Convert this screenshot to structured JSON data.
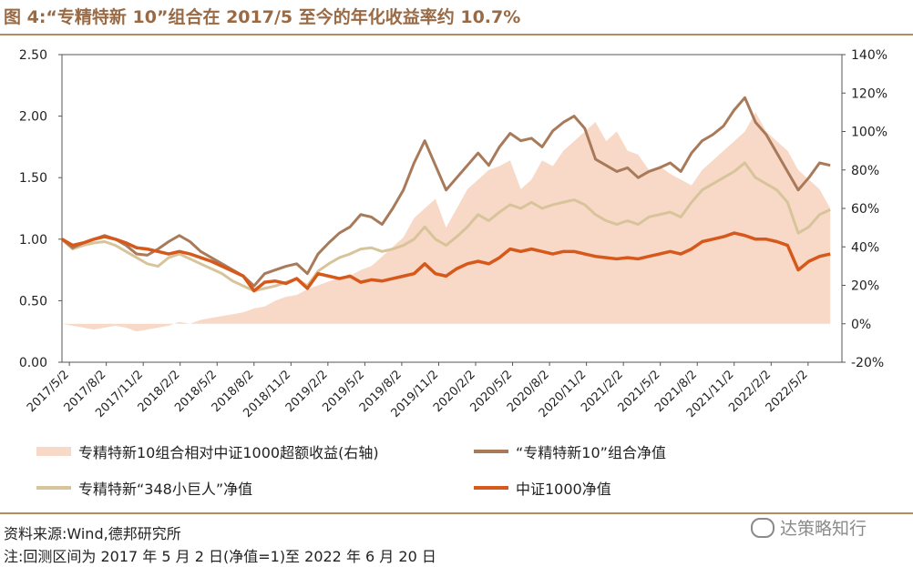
{
  "title": "图 4:“专精特新 10”组合在 2017/5 至今的年化收益率约 10.7%",
  "source": "资料来源:Wind,德邦研究所",
  "note": "注:回测区间为 2017 年 5 月 2 日(净值=1)至 2022 年 6 月 20 日",
  "watermark": "达策略知行",
  "colors": {
    "excess": "#f8d9c7",
    "top10": "#a87a5a",
    "giant348": "#d8c49a",
    "csi1000": "#d6581a",
    "rule": "#b88a60"
  },
  "chart_data": {
    "type": "line",
    "x_labels": [
      "2017/5/2",
      "2017/8/2",
      "2017/11/2",
      "2018/2/2",
      "2018/5/2",
      "2018/8/2",
      "2018/11/2",
      "2019/2/2",
      "2019/5/2",
      "2019/8/2",
      "2019/11/2",
      "2020/2/2",
      "2020/5/2",
      "2020/8/2",
      "2020/11/2",
      "2021/2/2",
      "2021/5/2",
      "2021/8/2",
      "2021/11/2",
      "2022/2/2",
      "2022/5/2"
    ],
    "y_left": {
      "ticks": [
        "0.00",
        "0.50",
        "1.00",
        "1.50",
        "2.00",
        "2.50"
      ],
      "range": [
        0,
        2.5
      ]
    },
    "y_right": {
      "ticks": [
        "-20%",
        "0%",
        "20%",
        "40%",
        "60%",
        "80%",
        "100%",
        "120%",
        "140%"
      ],
      "range": [
        -20,
        140
      ]
    },
    "series": [
      {
        "name": "专精特新10组合相对中证1000超额收益(右轴)",
        "type": "area",
        "axis": "right",
        "values": [
          0,
          -1,
          -2,
          -3,
          -2,
          -1,
          -2,
          -4,
          -3,
          -2,
          -1,
          1,
          0,
          2,
          3,
          4,
          5,
          6,
          8,
          9,
          12,
          14,
          15,
          18,
          20,
          22,
          24,
          25,
          28,
          30,
          35,
          40,
          45,
          55,
          60,
          65,
          50,
          60,
          70,
          75,
          80,
          82,
          85,
          70,
          75,
          85,
          82,
          90,
          95,
          100,
          105,
          95,
          100,
          90,
          88,
          80,
          82,
          78,
          75,
          72,
          80,
          85,
          90,
          95,
          100,
          110,
          100,
          95,
          90,
          80,
          75,
          70,
          60
        ]
      },
      {
        "name": "“专精特新10”组合净值",
        "type": "line",
        "axis": "left",
        "values": [
          1.0,
          0.93,
          0.97,
          1.0,
          1.03,
          1.0,
          0.95,
          0.88,
          0.87,
          0.92,
          0.98,
          1.03,
          0.98,
          0.9,
          0.85,
          0.8,
          0.75,
          0.7,
          0.62,
          0.72,
          0.75,
          0.78,
          0.8,
          0.72,
          0.88,
          0.97,
          1.05,
          1.1,
          1.2,
          1.18,
          1.12,
          1.25,
          1.4,
          1.62,
          1.8,
          1.6,
          1.4,
          1.5,
          1.6,
          1.7,
          1.6,
          1.75,
          1.86,
          1.8,
          1.82,
          1.75,
          1.88,
          1.95,
          2.0,
          1.9,
          1.65,
          1.6,
          1.55,
          1.58,
          1.5,
          1.55,
          1.58,
          1.62,
          1.55,
          1.7,
          1.8,
          1.85,
          1.92,
          2.05,
          2.15,
          1.95,
          1.85,
          1.7,
          1.55,
          1.4,
          1.5,
          1.62,
          1.6
        ]
      },
      {
        "name": "专精特新“348小巨人”净值",
        "type": "line",
        "axis": "left",
        "values": [
          1.0,
          0.92,
          0.95,
          0.97,
          0.98,
          0.95,
          0.9,
          0.85,
          0.8,
          0.78,
          0.85,
          0.88,
          0.84,
          0.8,
          0.76,
          0.72,
          0.66,
          0.62,
          0.58,
          0.6,
          0.62,
          0.65,
          0.68,
          0.62,
          0.74,
          0.8,
          0.85,
          0.88,
          0.92,
          0.93,
          0.9,
          0.92,
          0.95,
          1.0,
          1.1,
          1.0,
          0.95,
          1.02,
          1.1,
          1.2,
          1.15,
          1.22,
          1.28,
          1.25,
          1.3,
          1.25,
          1.28,
          1.3,
          1.32,
          1.28,
          1.2,
          1.15,
          1.12,
          1.15,
          1.12,
          1.18,
          1.2,
          1.22,
          1.18,
          1.3,
          1.4,
          1.45,
          1.5,
          1.55,
          1.62,
          1.5,
          1.45,
          1.4,
          1.3,
          1.05,
          1.1,
          1.2,
          1.24
        ]
      },
      {
        "name": "中证1000净值",
        "type": "line",
        "axis": "left",
        "values": [
          1.0,
          0.95,
          0.97,
          1.0,
          1.02,
          1.0,
          0.97,
          0.93,
          0.92,
          0.9,
          0.88,
          0.9,
          0.88,
          0.85,
          0.82,
          0.78,
          0.74,
          0.7,
          0.58,
          0.65,
          0.66,
          0.64,
          0.68,
          0.6,
          0.72,
          0.7,
          0.68,
          0.7,
          0.65,
          0.67,
          0.66,
          0.68,
          0.7,
          0.72,
          0.8,
          0.72,
          0.7,
          0.76,
          0.8,
          0.82,
          0.8,
          0.85,
          0.92,
          0.9,
          0.92,
          0.9,
          0.88,
          0.9,
          0.9,
          0.88,
          0.86,
          0.85,
          0.84,
          0.85,
          0.84,
          0.86,
          0.88,
          0.9,
          0.88,
          0.92,
          0.98,
          1.0,
          1.02,
          1.05,
          1.03,
          1.0,
          1.0,
          0.98,
          0.95,
          0.75,
          0.82,
          0.86,
          0.88
        ]
      }
    ]
  },
  "legend": [
    {
      "label": "专精特新10组合相对中证1000超额收益(右轴)"
    },
    {
      "label": "“专精特新10”组合净值"
    },
    {
      "label": "专精特新“348小巨人”净值"
    },
    {
      "label": "中证1000净值"
    }
  ]
}
